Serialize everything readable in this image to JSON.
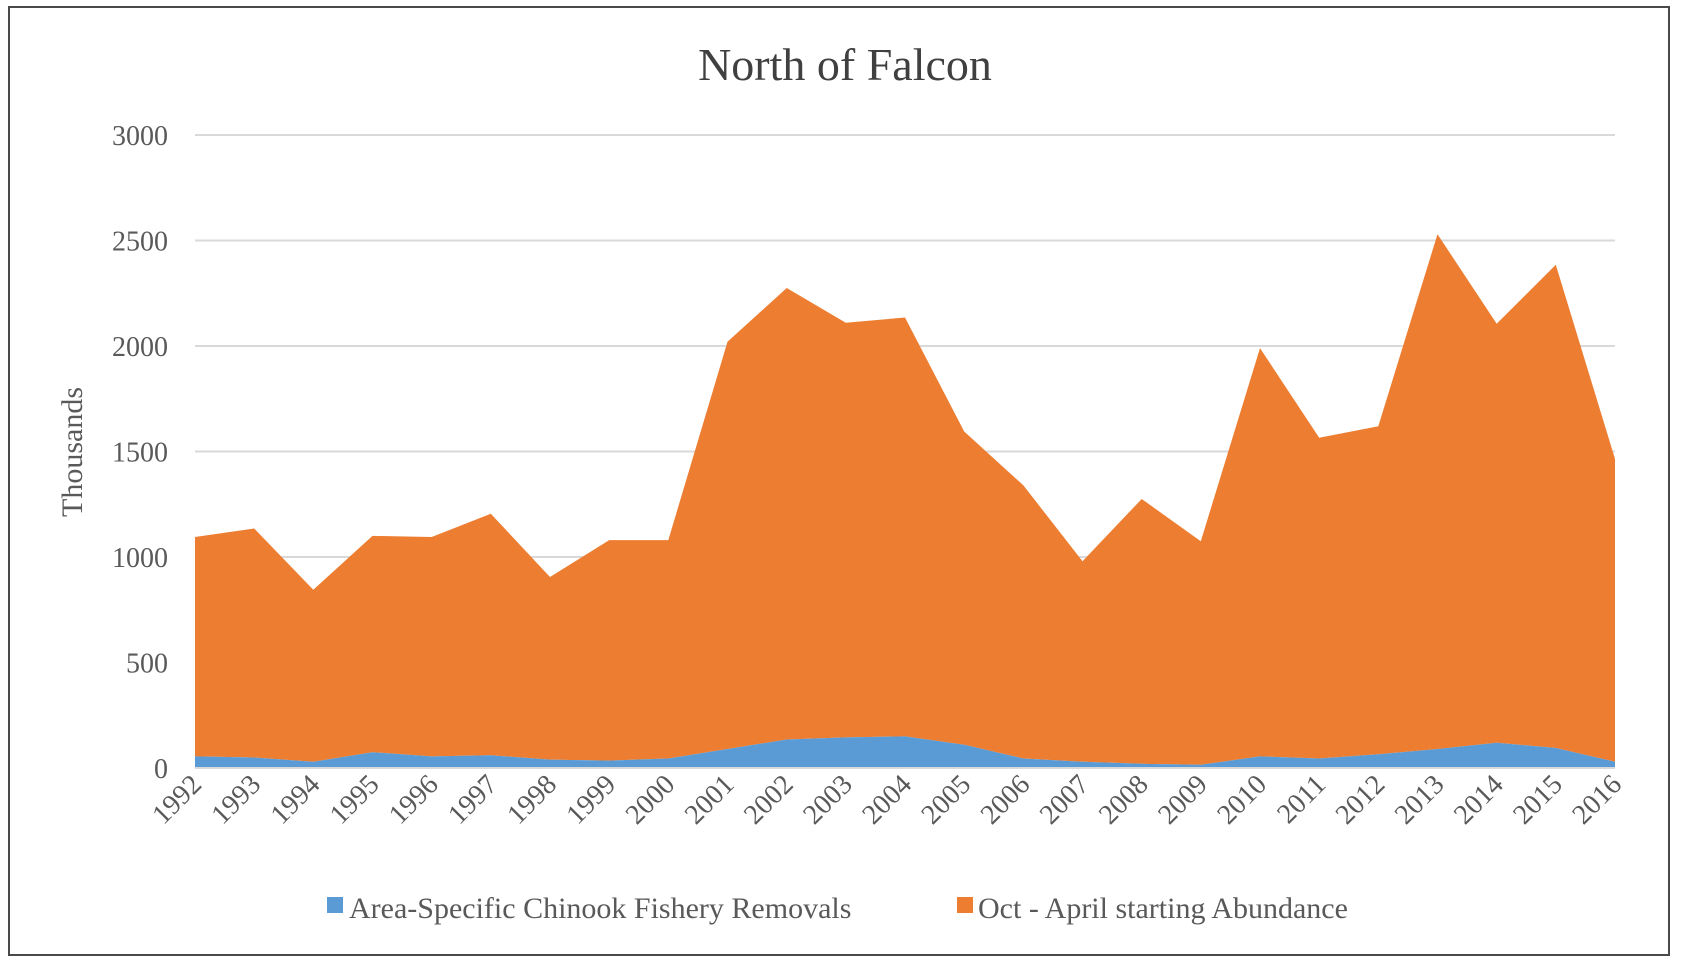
{
  "chart_data": {
    "type": "area",
    "stacked": true,
    "title": "North of Falcon",
    "xlabel": "",
    "ylabel": "Thousands",
    "ylim": [
      0,
      3000
    ],
    "yticks": [
      "0",
      "500",
      "1000",
      "1500",
      "2000",
      "2500",
      "3000"
    ],
    "grid": true,
    "legend_position": "bottom",
    "categories": [
      "1992",
      "1993",
      "1994",
      "1995",
      "1996",
      "1997",
      "1998",
      "1999",
      "2000",
      "2001",
      "2002",
      "2003",
      "2004",
      "2005",
      "2006",
      "2007",
      "2008",
      "2009",
      "2010",
      "2011",
      "2012",
      "2013",
      "2014",
      "2015",
      "2016"
    ],
    "series": [
      {
        "name": "Area-Specific Chinook Fishery Removals",
        "color": "#5b9bd5",
        "values": [
          55,
          50,
          30,
          75,
          55,
          60,
          40,
          35,
          45,
          90,
          135,
          145,
          150,
          110,
          45,
          30,
          20,
          15,
          55,
          45,
          65,
          90,
          120,
          95,
          30
        ]
      },
      {
        "name": "Oct - April starting Abundance",
        "color": "#ed7d31",
        "values": [
          1040,
          1085,
          815,
          1025,
          1040,
          1145,
          865,
          1045,
          1035,
          1930,
          2140,
          1965,
          1985,
          1485,
          1295,
          950,
          1255,
          1060,
          1935,
          1520,
          1555,
          2440,
          1985,
          2290,
          1435
        ]
      }
    ]
  }
}
